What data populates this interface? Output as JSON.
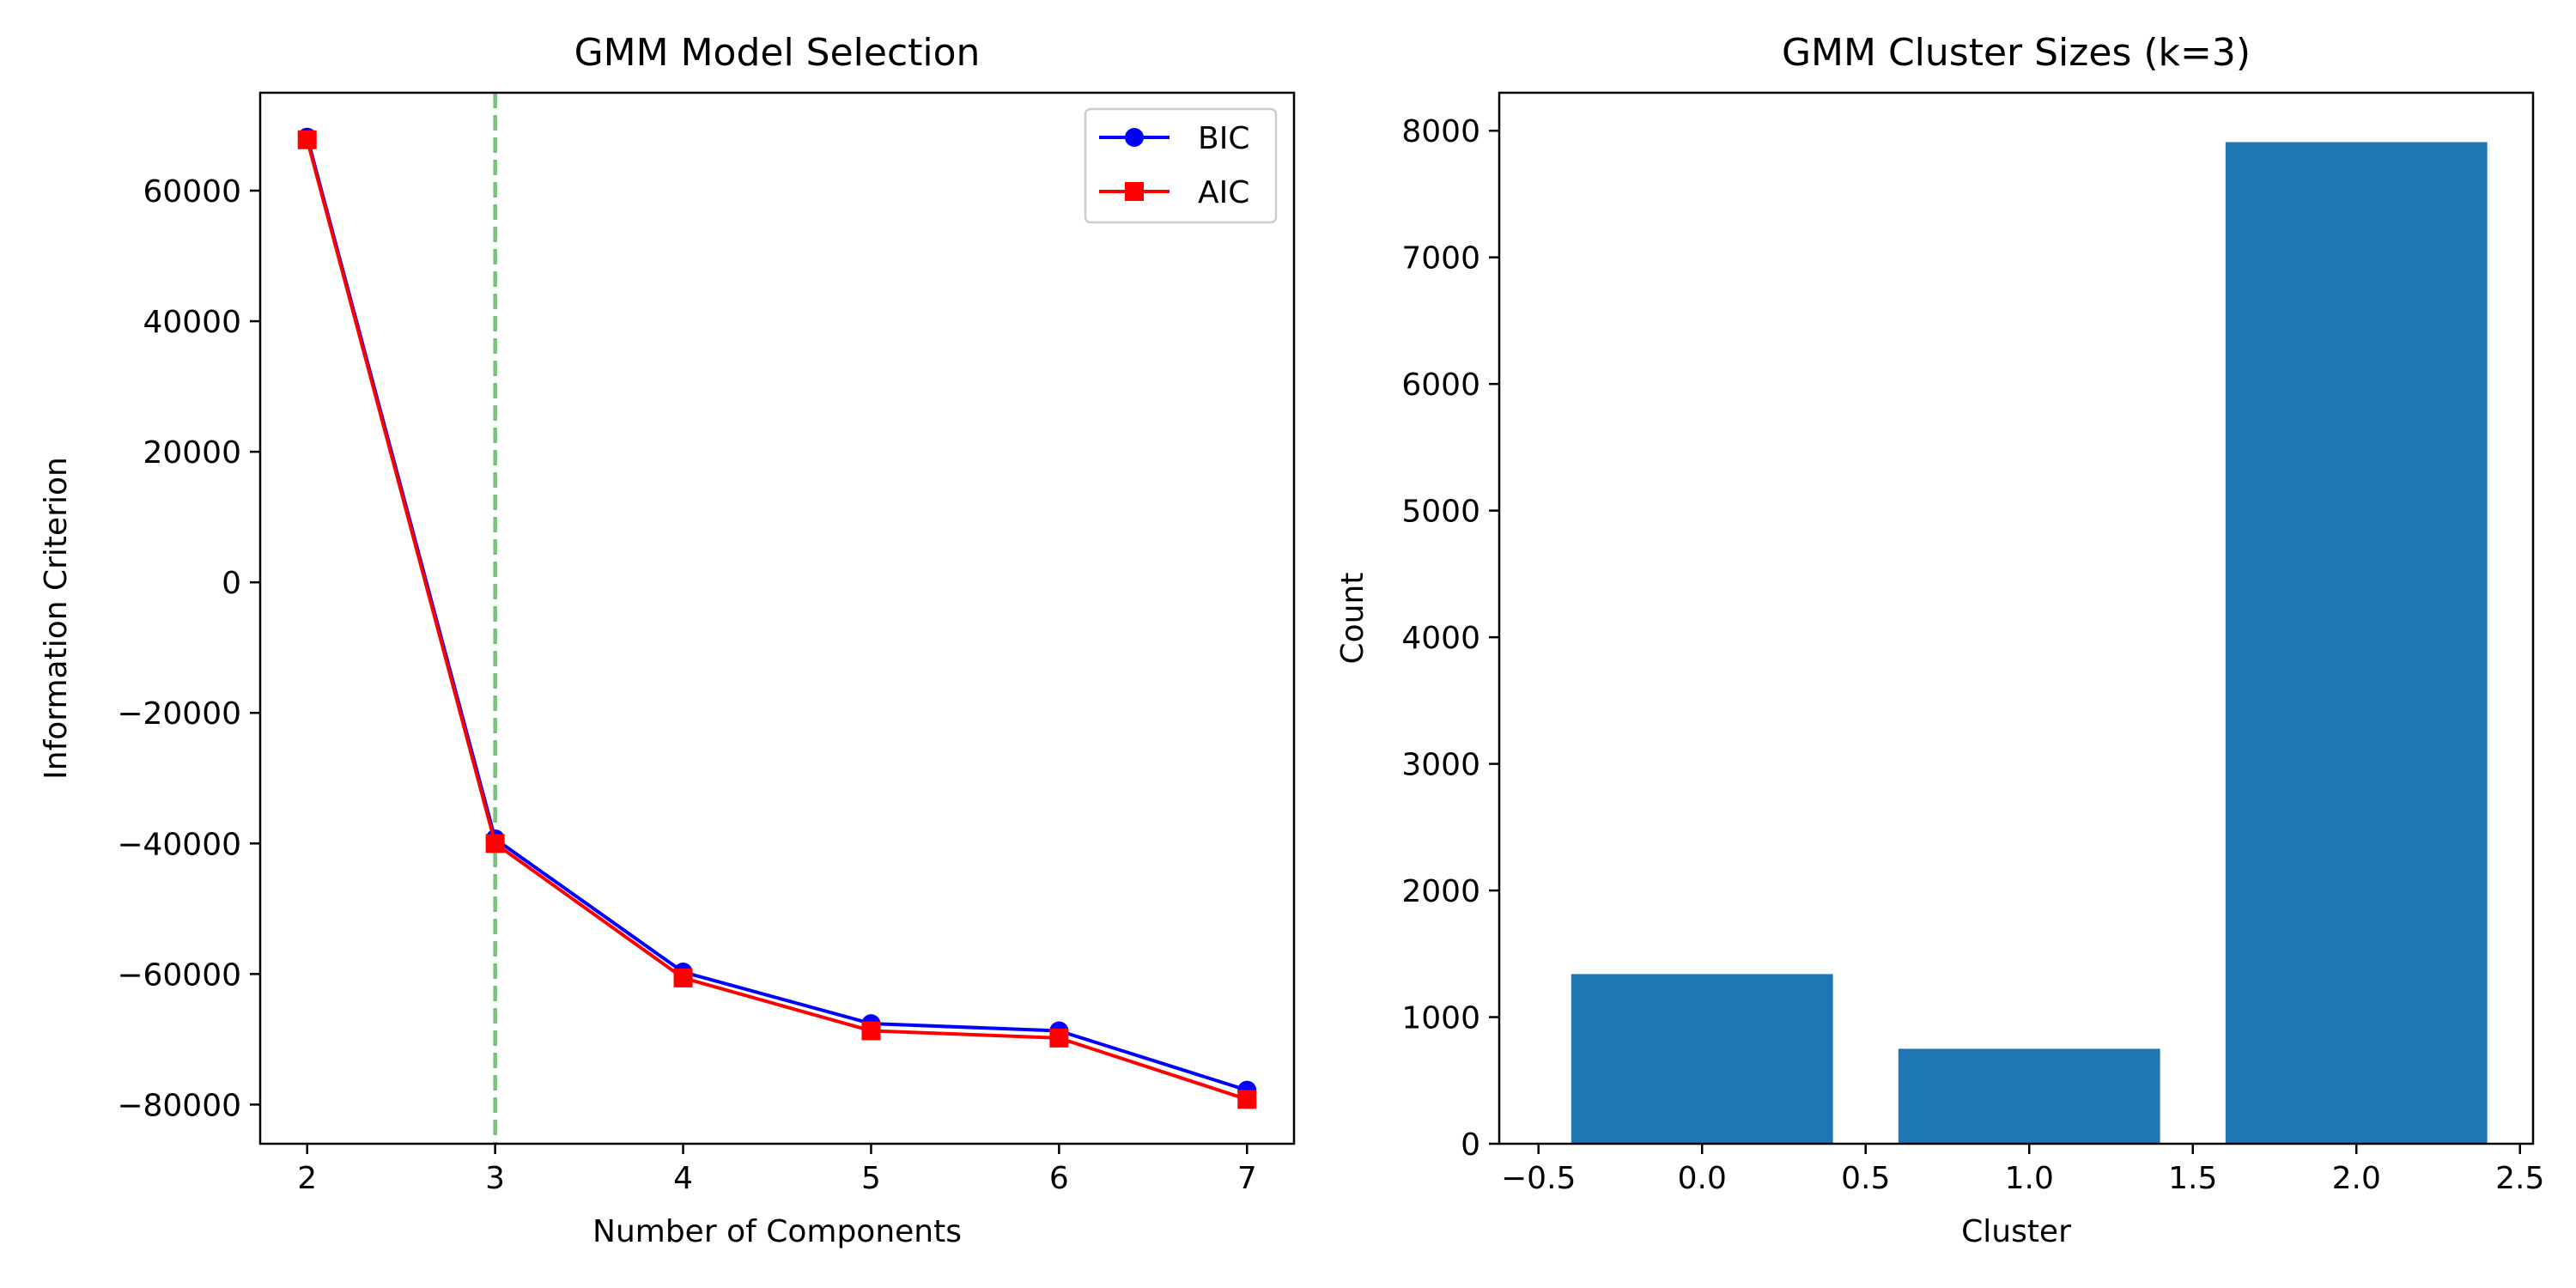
{
  "chart_data": [
    {
      "type": "line",
      "title": "GMM Model Selection",
      "xlabel": "Number of Components",
      "ylabel": "Information Criterion",
      "x": [
        2,
        3,
        4,
        5,
        6,
        7
      ],
      "xlim": [
        1.75,
        7.25
      ],
      "ylim": [
        -86000,
        75000
      ],
      "xticks": [
        2,
        3,
        4,
        5,
        6,
        7
      ],
      "xtick_labels": [
        "2",
        "3",
        "4",
        "5",
        "6",
        "7"
      ],
      "yticks": [
        60000,
        40000,
        20000,
        0,
        -20000,
        -40000,
        -60000,
        -80000
      ],
      "ytick_labels": [
        "60000",
        "40000",
        "20000",
        "0",
        "−20000",
        "−40000",
        "−60000",
        "−80000"
      ],
      "series": [
        {
          "name": "BIC",
          "color": "#0000ff",
          "marker": "circle",
          "values": [
            68200,
            -39300,
            -59700,
            -67600,
            -68700,
            -77800
          ]
        },
        {
          "name": "AIC",
          "color": "#ff0000",
          "marker": "square",
          "values": [
            67800,
            -40000,
            -60600,
            -68700,
            -69800,
            -79200
          ]
        }
      ],
      "annotations": [
        {
          "type": "vertical-line",
          "x": 3,
          "color": "#77c17a",
          "style": "dashed"
        }
      ],
      "legend": "upper-right",
      "grid": false
    },
    {
      "type": "bar",
      "title": "GMM Cluster Sizes (k=3)",
      "xlabel": "Cluster",
      "ylabel": "Count",
      "x": [
        0,
        1,
        2
      ],
      "values": [
        1340,
        750,
        7910
      ],
      "bar_width": 0.8,
      "color": "#1f77b4",
      "xlim": [
        -0.62,
        2.54
      ],
      "ylim": [
        0,
        8300
      ],
      "xticks": [
        -0.5,
        0.0,
        0.5,
        1.0,
        1.5,
        2.0,
        2.5
      ],
      "xtick_labels": [
        "−0.5",
        "0.0",
        "0.5",
        "1.0",
        "1.5",
        "2.0",
        "2.5"
      ],
      "yticks": [
        0,
        1000,
        2000,
        3000,
        4000,
        5000,
        6000,
        7000,
        8000
      ],
      "ytick_labels": [
        "0",
        "1000",
        "2000",
        "3000",
        "4000",
        "5000",
        "6000",
        "7000",
        "8000"
      ],
      "grid": false
    }
  ]
}
